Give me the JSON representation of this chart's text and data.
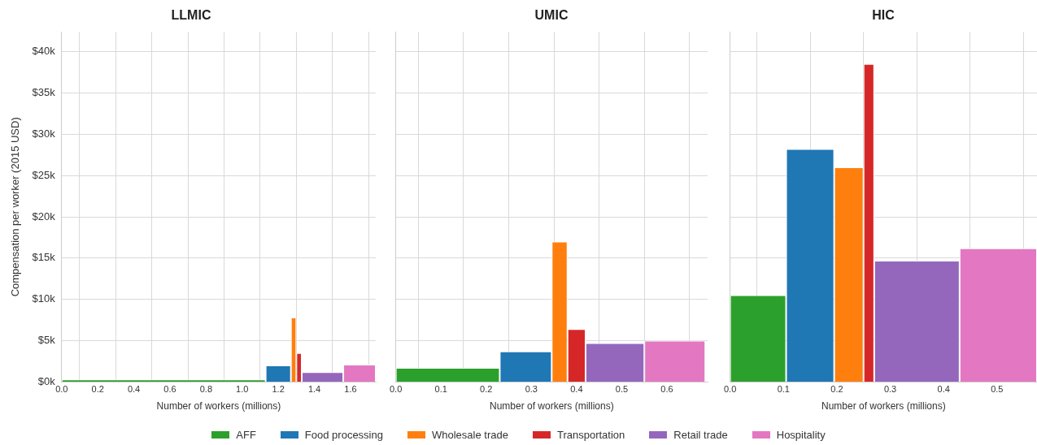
{
  "chart_data": [
    {
      "type": "histogram",
      "title": "LLMIC",
      "xlabel": "Number of workers (millions)",
      "ylabel": "Compensation per worker (2015 USD)",
      "xlim": [
        0,
        1.74
      ],
      "xticks": [
        {
          "value": 0,
          "label": "0.0"
        },
        {
          "value": 0.2,
          "label": "0.2"
        },
        {
          "value": 0.4,
          "label": "0.4"
        },
        {
          "value": 0.6,
          "label": "0.6"
        },
        {
          "value": 0.8,
          "label": "0.8"
        },
        {
          "value": 1,
          "label": "1.0"
        },
        {
          "value": 1.2,
          "label": "1.2"
        },
        {
          "value": 1.4,
          "label": "1.4"
        },
        {
          "value": 1.6,
          "label": "1.6"
        }
      ],
      "ylim": [
        0,
        42400
      ],
      "yticks": [
        {
          "value": 0,
          "label": "$0k"
        },
        {
          "value": 5000,
          "label": "$5k"
        },
        {
          "value": 10000,
          "label": "$10k"
        },
        {
          "value": 15000,
          "label": "$15k"
        },
        {
          "value": 20000,
          "label": "$20k"
        },
        {
          "value": 25000,
          "label": "$25k"
        },
        {
          "value": 30000,
          "label": "$30k"
        },
        {
          "value": 35000,
          "label": "$35k"
        },
        {
          "value": 40000,
          "label": "$40k"
        }
      ],
      "grid": true,
      "legend": "bottom",
      "bins": [
        0,
        1.13,
        1.27,
        1.3,
        1.33,
        1.56,
        1.74
      ],
      "series": [
        {
          "name": "AFF",
          "color": "#2ca02c",
          "values": [
            300,
            null,
            null,
            null,
            null,
            null
          ]
        },
        {
          "name": "Food processing",
          "color": "#1f77b4",
          "values": [
            null,
            2000,
            null,
            null,
            null,
            null
          ]
        },
        {
          "name": "Wholesale trade",
          "color": "#ff7f0e",
          "values": [
            null,
            null,
            7800,
            null,
            null,
            null
          ]
        },
        {
          "name": "Transportation",
          "color": "#d62728",
          "values": [
            null,
            null,
            null,
            3500,
            null,
            null
          ]
        },
        {
          "name": "Retail trade",
          "color": "#9467bd",
          "values": [
            null,
            null,
            null,
            null,
            1200,
            null
          ]
        },
        {
          "name": "Hospitality",
          "color": "#e377c2",
          "values": [
            null,
            null,
            null,
            null,
            null,
            2100
          ]
        }
      ]
    },
    {
      "type": "histogram",
      "title": "UMIC",
      "xlabel": "Number of workers (millions)",
      "xlim": [
        0,
        0.69
      ],
      "xticks": [
        {
          "value": 0,
          "label": "0.0"
        },
        {
          "value": 0.1,
          "label": "0.1"
        },
        {
          "value": 0.2,
          "label": "0.2"
        },
        {
          "value": 0.3,
          "label": "0.3"
        },
        {
          "value": 0.4,
          "label": "0.4"
        },
        {
          "value": 0.5,
          "label": "0.5"
        },
        {
          "value": 0.6,
          "label": "0.6"
        }
      ],
      "ylim": [
        0,
        42400
      ],
      "yticks": [
        {
          "value": 0,
          "label": null
        },
        {
          "value": 5000,
          "label": null
        },
        {
          "value": 10000,
          "label": null
        },
        {
          "value": 15000,
          "label": null
        },
        {
          "value": 20000,
          "label": null
        },
        {
          "value": 25000,
          "label": null
        },
        {
          "value": 30000,
          "label": null
        },
        {
          "value": 35000,
          "label": null
        },
        {
          "value": 40000,
          "label": null
        }
      ],
      "tick_labels": "x",
      "grid": true,
      "bins": [
        0,
        0.23,
        0.345,
        0.38,
        0.42,
        0.55,
        0.685
      ],
      "series": [
        {
          "color": "#2ca02c",
          "values": [
            1700,
            null,
            null,
            null,
            null,
            null
          ]
        },
        {
          "color": "#1f77b4",
          "values": [
            null,
            3700,
            null,
            null,
            null,
            null
          ]
        },
        {
          "color": "#ff7f0e",
          "values": [
            null,
            null,
            17000,
            null,
            null,
            null
          ]
        },
        {
          "color": "#d62728",
          "values": [
            null,
            null,
            null,
            6400,
            null,
            null
          ]
        },
        {
          "color": "#9467bd",
          "values": [
            null,
            null,
            null,
            null,
            4700,
            null
          ]
        },
        {
          "color": "#e377c2",
          "values": [
            null,
            null,
            null,
            null,
            null,
            5000
          ]
        }
      ]
    },
    {
      "type": "histogram",
      "title": "HIC",
      "xlabel": "Number of workers (millions)",
      "xlim": [
        0,
        0.575
      ],
      "xticks": [
        {
          "value": 0,
          "label": "0.0"
        },
        {
          "value": 0.1,
          "label": "0.1"
        },
        {
          "value": 0.2,
          "label": "0.2"
        },
        {
          "value": 0.3,
          "label": "0.3"
        },
        {
          "value": 0.4,
          "label": "0.4"
        },
        {
          "value": 0.5,
          "label": "0.5"
        }
      ],
      "ylim": [
        0,
        42400
      ],
      "yticks": [
        {
          "value": 0,
          "label": null
        },
        {
          "value": 5000,
          "label": null
        },
        {
          "value": 10000,
          "label": null
        },
        {
          "value": 15000,
          "label": null
        },
        {
          "value": 20000,
          "label": null
        },
        {
          "value": 25000,
          "label": null
        },
        {
          "value": 30000,
          "label": null
        },
        {
          "value": 35000,
          "label": null
        },
        {
          "value": 40000,
          "label": null
        }
      ],
      "tick_labels": "x",
      "grid": true,
      "bins": [
        0,
        0.105,
        0.195,
        0.25,
        0.27,
        0.43,
        0.575
      ],
      "series": [
        {
          "color": "#2ca02c",
          "values": [
            10500,
            null,
            null,
            null,
            null,
            null
          ]
        },
        {
          "color": "#1f77b4",
          "values": [
            null,
            28200,
            null,
            null,
            null,
            null
          ]
        },
        {
          "color": "#ff7f0e",
          "values": [
            null,
            null,
            26000,
            null,
            null,
            null
          ]
        },
        {
          "color": "#d62728",
          "values": [
            null,
            null,
            null,
            38500,
            null,
            null
          ]
        },
        {
          "color": "#9467bd",
          "values": [
            null,
            null,
            null,
            null,
            14700,
            null
          ]
        },
        {
          "color": "#e377c2",
          "values": [
            null,
            null,
            null,
            null,
            null,
            16200
          ]
        }
      ]
    }
  ]
}
